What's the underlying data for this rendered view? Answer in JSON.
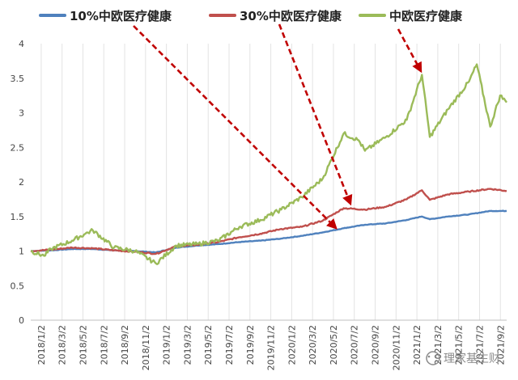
{
  "chart_data": {
    "type": "line",
    "legend_position": "top",
    "grid": "vertical",
    "ylim": [
      0,
      4
    ],
    "y_ticks": [
      "0",
      "0.5",
      "1",
      "1.5",
      "2",
      "2.5",
      "3",
      "3.5",
      "4"
    ],
    "x_tick_labels": [
      "2018/1/2",
      "2018/3/2",
      "2018/5/2",
      "2018/7/2",
      "2018/9/2",
      "2018/11/2",
      "2019/1/2",
      "2019/3/2",
      "2019/5/2",
      "2019/7/2",
      "2019/9/2",
      "2019/11/2",
      "2020/1/2",
      "2020/3/2",
      "2020/5/2",
      "2020/7/2",
      "2020/9/2",
      "2020/11/2",
      "2021/1/2",
      "2021/3/2",
      "2021/5/2",
      "2021/7/2",
      "2021/9/2"
    ],
    "xlim": [
      "2018-01-02",
      "2021-10-20"
    ],
    "series": [
      {
        "name": "10%中欧医疗健康",
        "color": "#4f81bd",
        "points": [
          [
            "2018-01-02",
            1.0
          ],
          [
            "2018-03-02",
            1.01
          ],
          [
            "2018-05-02",
            1.03
          ],
          [
            "2018-07-02",
            1.03
          ],
          [
            "2018-09-02",
            1.01
          ],
          [
            "2018-11-02",
            1.0
          ],
          [
            "2019-01-02",
            0.98
          ],
          [
            "2019-03-02",
            1.05
          ],
          [
            "2019-05-02",
            1.08
          ],
          [
            "2019-07-02",
            1.1
          ],
          [
            "2019-09-02",
            1.13
          ],
          [
            "2019-11-02",
            1.15
          ],
          [
            "2020-01-02",
            1.18
          ],
          [
            "2020-03-02",
            1.22
          ],
          [
            "2020-05-02",
            1.27
          ],
          [
            "2020-07-02",
            1.33
          ],
          [
            "2020-09-02",
            1.38
          ],
          [
            "2020-11-02",
            1.4
          ],
          [
            "2021-01-02",
            1.45
          ],
          [
            "2021-02-15",
            1.5
          ],
          [
            "2021-03-10",
            1.46
          ],
          [
            "2021-05-02",
            1.5
          ],
          [
            "2021-07-02",
            1.53
          ],
          [
            "2021-09-02",
            1.58
          ],
          [
            "2021-10-20",
            1.58
          ]
        ]
      },
      {
        "name": "30%中欧医疗健康",
        "color": "#c0504d",
        "points": [
          [
            "2018-01-02",
            1.0
          ],
          [
            "2018-03-02",
            1.02
          ],
          [
            "2018-05-02",
            1.05
          ],
          [
            "2018-07-02",
            1.04
          ],
          [
            "2018-09-02",
            1.01
          ],
          [
            "2018-11-02",
            0.99
          ],
          [
            "2019-01-02",
            0.96
          ],
          [
            "2019-03-02",
            1.07
          ],
          [
            "2019-05-02",
            1.09
          ],
          [
            "2019-07-02",
            1.13
          ],
          [
            "2019-09-02",
            1.2
          ],
          [
            "2019-11-02",
            1.25
          ],
          [
            "2020-01-02",
            1.32
          ],
          [
            "2020-03-02",
            1.35
          ],
          [
            "2020-05-02",
            1.44
          ],
          [
            "2020-07-02",
            1.62
          ],
          [
            "2020-09-02",
            1.6
          ],
          [
            "2020-11-02",
            1.64
          ],
          [
            "2021-01-02",
            1.75
          ],
          [
            "2021-02-15",
            1.88
          ],
          [
            "2021-03-10",
            1.74
          ],
          [
            "2021-05-02",
            1.82
          ],
          [
            "2021-07-02",
            1.86
          ],
          [
            "2021-09-02",
            1.9
          ],
          [
            "2021-10-20",
            1.87
          ]
        ]
      },
      {
        "name": "中欧医疗健康",
        "color": "#9bbb59",
        "points": [
          [
            "2018-01-02",
            1.0
          ],
          [
            "2018-02-10",
            0.93
          ],
          [
            "2018-03-02",
            1.03
          ],
          [
            "2018-05-02",
            1.15
          ],
          [
            "2018-06-10",
            1.25
          ],
          [
            "2018-07-02",
            1.3
          ],
          [
            "2018-09-02",
            1.05
          ],
          [
            "2018-11-02",
            1.0
          ],
          [
            "2019-01-02",
            0.82
          ],
          [
            "2019-03-02",
            1.08
          ],
          [
            "2019-05-02",
            1.1
          ],
          [
            "2019-07-02",
            1.15
          ],
          [
            "2019-09-02",
            1.35
          ],
          [
            "2019-11-02",
            1.45
          ],
          [
            "2020-01-02",
            1.6
          ],
          [
            "2020-03-02",
            1.78
          ],
          [
            "2020-05-02",
            2.05
          ],
          [
            "2020-07-02",
            2.7
          ],
          [
            "2020-08-15",
            2.6
          ],
          [
            "2020-09-02",
            2.45
          ],
          [
            "2020-11-02",
            2.65
          ],
          [
            "2021-01-02",
            2.9
          ],
          [
            "2021-02-15",
            3.55
          ],
          [
            "2021-03-10",
            2.65
          ],
          [
            "2021-05-02",
            3.05
          ],
          [
            "2021-07-02",
            3.45
          ],
          [
            "2021-07-25",
            3.7
          ],
          [
            "2021-09-02",
            2.8
          ],
          [
            "2021-10-01",
            3.25
          ],
          [
            "2021-10-20",
            3.15
          ]
        ]
      }
    ]
  },
  "watermark": {
    "icon": "wechat-icon",
    "text": "理家基生财"
  }
}
